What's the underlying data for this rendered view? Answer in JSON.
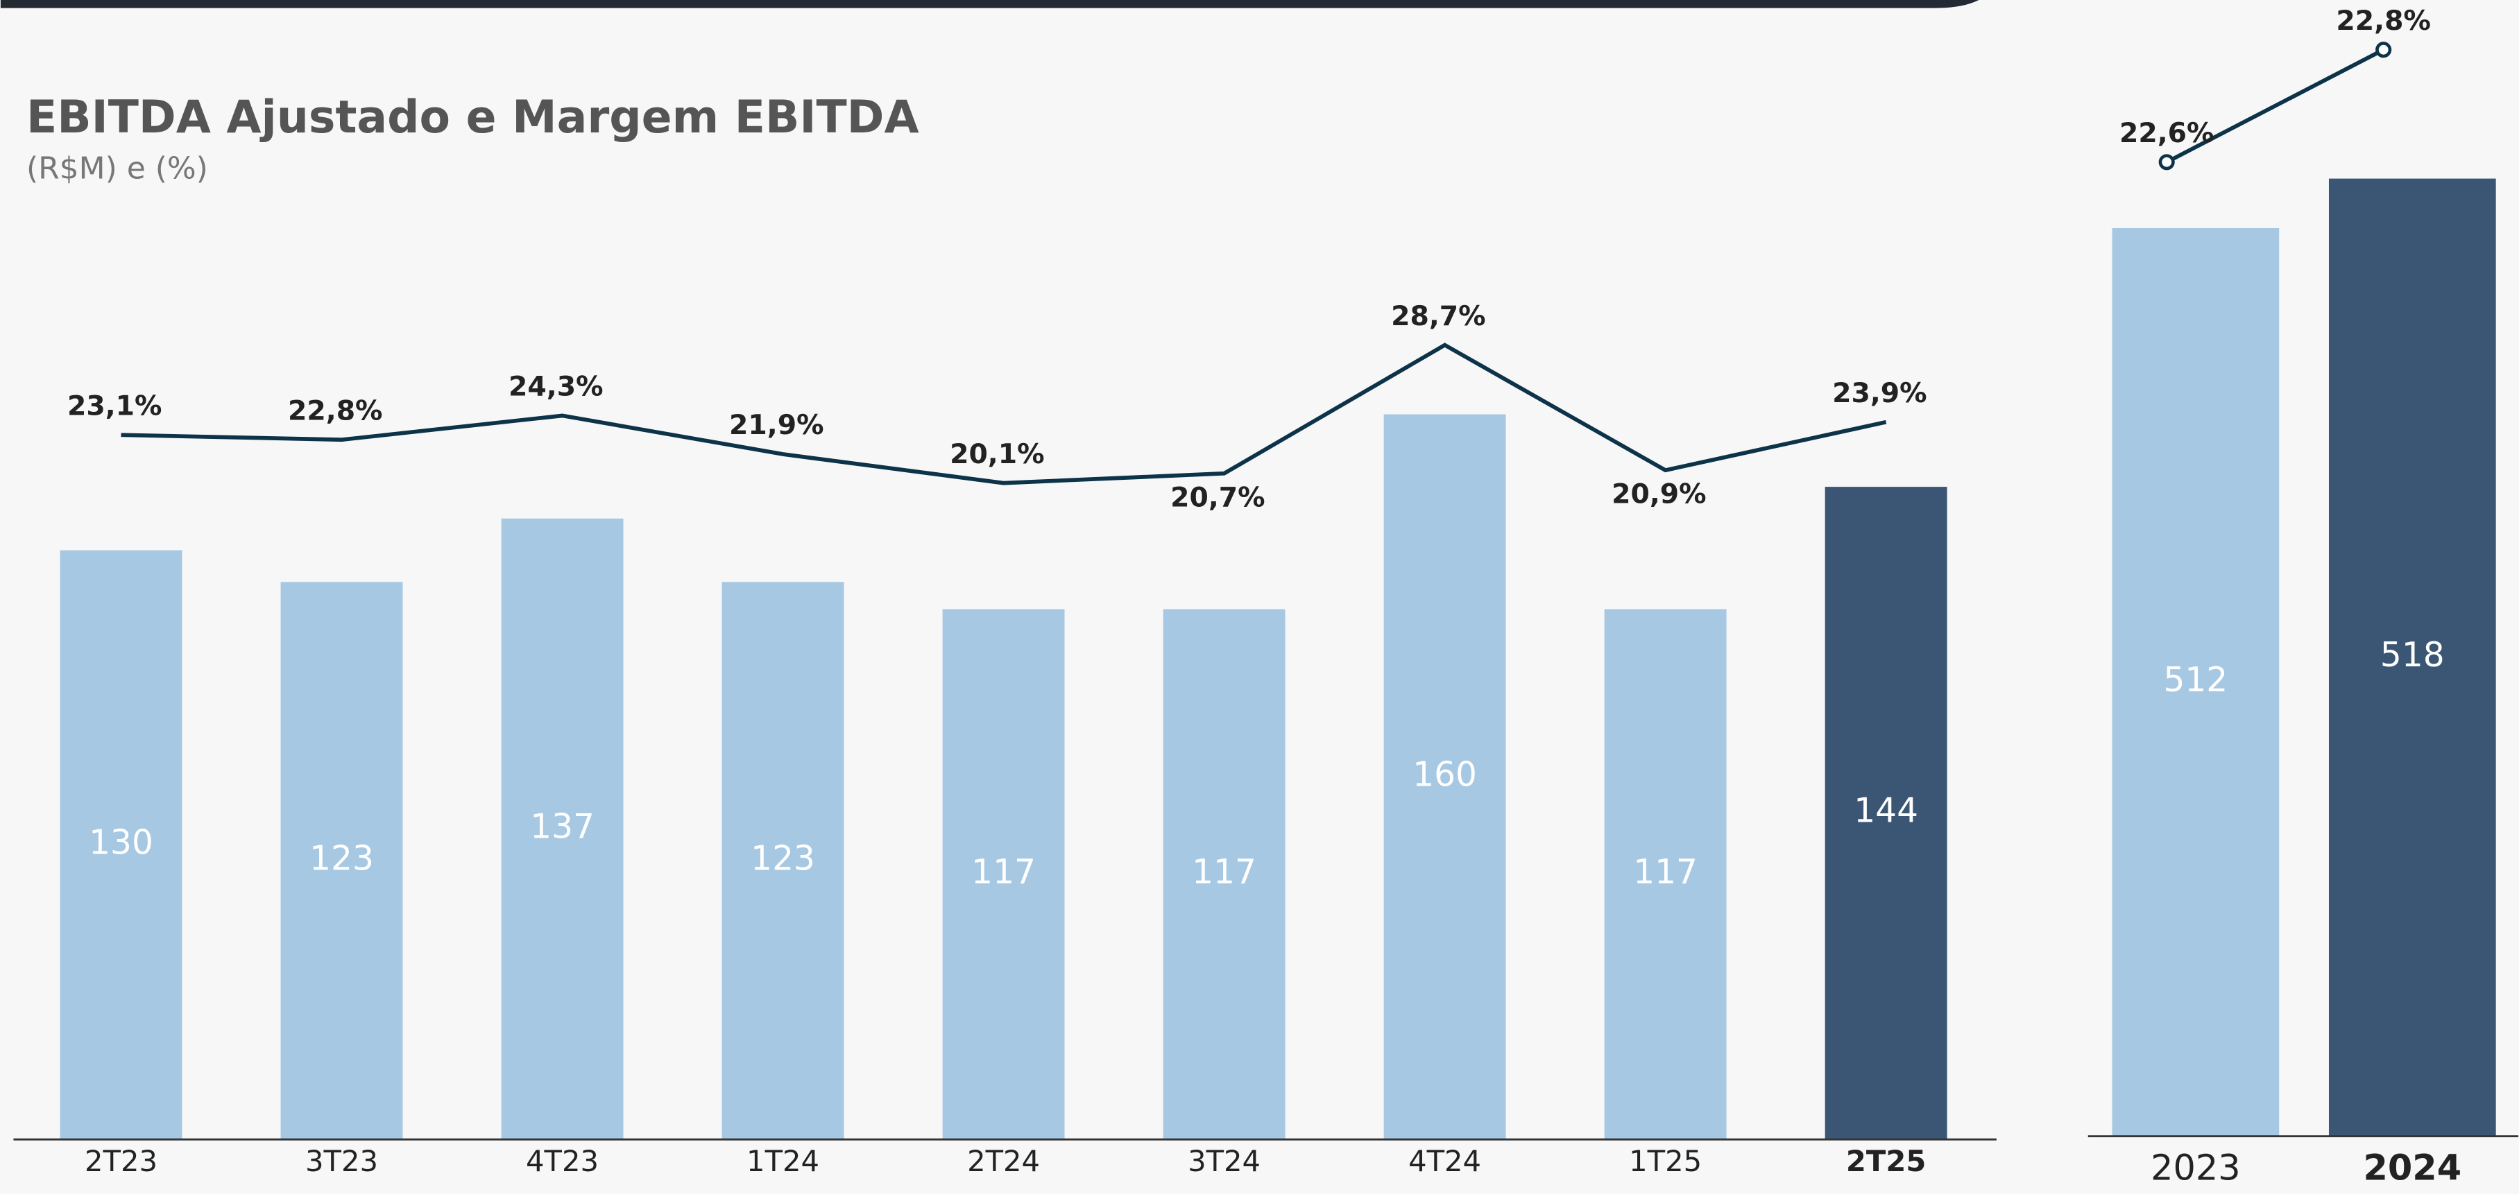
{
  "chart_data": [
    {
      "type": "bar",
      "title": "EBITDA Ajustado e Margem EBITDA",
      "subtitle": "(R$M) e (%)",
      "categories": [
        "2T23",
        "3T23",
        "4T23",
        "1T24",
        "2T24",
        "3T24",
        "4T24",
        "1T25",
        "2T25"
      ],
      "ylim": [
        0,
        250
      ],
      "y2lim": [
        0,
        30
      ],
      "series": [
        {
          "type": "bar",
          "values": [
            130,
            123,
            137,
            123,
            117,
            117,
            160,
            117,
            144
          ],
          "colors": [
            "#a7c8e2",
            "#a7c8e2",
            "#a7c8e2",
            "#a7c8e2",
            "#a7c8e2",
            "#a7c8e2",
            "#a7c8e2",
            "#a7c8e2",
            "#3a5674"
          ]
        },
        {
          "type": "line",
          "axis": "y2",
          "color": "#0d3349",
          "values": [
            23.1,
            22.8,
            24.3,
            21.9,
            20.1,
            20.7,
            28.7,
            20.9,
            23.9
          ],
          "value_labels": [
            "23,1%",
            "22,8%",
            "24,3%",
            "21,9%",
            "20,1%",
            "20,7%",
            "28,7%",
            "20,9%",
            "23,9%"
          ]
        }
      ]
    },
    {
      "type": "bar",
      "categories": [
        "2023",
        "2024"
      ],
      "ylim": [
        402,
        520
      ],
      "y2lim": [
        22.6,
        22.8
      ],
      "series": [
        {
          "type": "bar",
          "values": [
            512,
            518
          ],
          "colors": [
            "#a7c8e2",
            "#3a5674"
          ]
        },
        {
          "type": "line",
          "axis": "y2",
          "color": "#0d3349",
          "marker": "circle",
          "values": [
            22.6,
            22.8
          ],
          "value_labels": [
            "22,6%",
            "22,8%"
          ]
        }
      ]
    }
  ]
}
